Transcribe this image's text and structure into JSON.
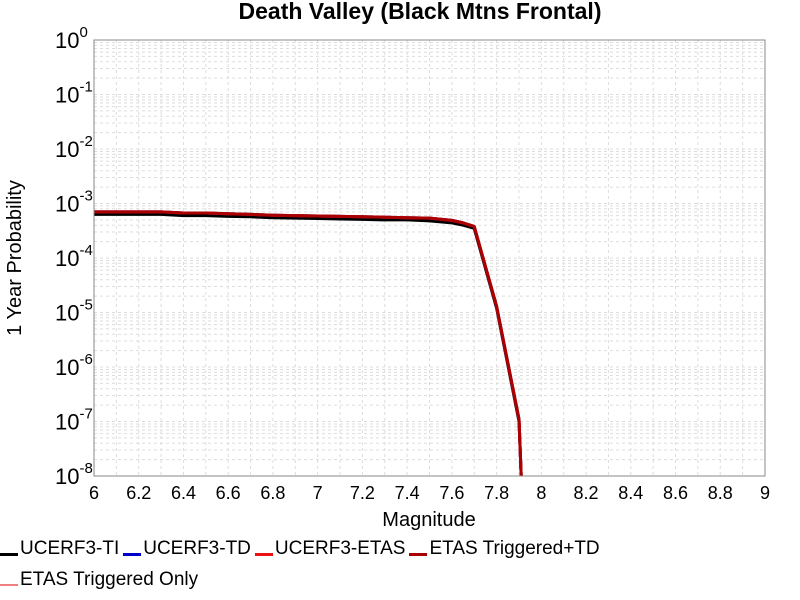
{
  "chart_data": {
    "type": "line",
    "title": "Death Valley (Black Mtns Frontal)",
    "xlabel": "Magnitude",
    "ylabel": "1 Year Probability",
    "xlim": [
      6,
      9
    ],
    "ylim": [
      1e-08,
      1
    ],
    "yscale": "log",
    "grid": true,
    "legend_position": "bottom",
    "x_ticks": [
      "6",
      "6.2",
      "6.4",
      "6.6",
      "6.8",
      "7",
      "7.2",
      "7.4",
      "7.6",
      "7.8",
      "8",
      "8.2",
      "8.4",
      "8.6",
      "8.8",
      "9"
    ],
    "y_tick_exponents": [
      "0",
      "-1",
      "-2",
      "-3",
      "-4",
      "-5",
      "-6",
      "-7",
      "-8"
    ],
    "y_tick_base": "10",
    "series": [
      {
        "name": "UCERF3-TI",
        "color": "#000000",
        "width": 3,
        "x": [
          6.0,
          6.3,
          6.4,
          6.5,
          6.6,
          6.7,
          6.8,
          6.9,
          7.0,
          7.1,
          7.2,
          7.3,
          7.4,
          7.5,
          7.6,
          7.65,
          7.7,
          7.8,
          7.9,
          7.91
        ],
        "y": [
          0.00063,
          0.00063,
          0.0006,
          0.0006,
          0.00058,
          0.00057,
          0.00055,
          0.00054,
          0.00053,
          0.00052,
          0.00051,
          0.0005,
          0.0005,
          0.00048,
          0.00044,
          0.0004,
          0.00035,
          1.2e-05,
          1e-07,
          1e-08
        ]
      },
      {
        "name": "UCERF3-TD",
        "color": "#0000cc",
        "width": 3,
        "x": [
          6.0,
          6.3,
          6.4,
          6.5,
          6.6,
          6.7,
          6.8,
          6.9,
          7.0,
          7.1,
          7.2,
          7.3,
          7.4,
          7.5,
          7.6,
          7.65,
          7.7,
          7.8,
          7.9,
          7.91
        ],
        "y": [
          0.0007,
          0.0007,
          0.00067,
          0.00067,
          0.00065,
          0.00063,
          0.00061,
          0.0006,
          0.00059,
          0.00058,
          0.00057,
          0.00056,
          0.00055,
          0.00054,
          0.00049,
          0.00044,
          0.00038,
          1.3e-05,
          1.1e-07,
          1e-08
        ]
      },
      {
        "name": "UCERF3-ETAS",
        "color": "#ee1111",
        "width": 3,
        "x": [
          6.0,
          6.3,
          6.4,
          6.5,
          6.6,
          6.7,
          6.8,
          6.9,
          7.0,
          7.1,
          7.2,
          7.3,
          7.4,
          7.5,
          7.6,
          7.65,
          7.7,
          7.8,
          7.9,
          7.91
        ],
        "y": [
          0.0007,
          0.0007,
          0.00067,
          0.00067,
          0.00065,
          0.00063,
          0.00061,
          0.0006,
          0.00059,
          0.00058,
          0.00057,
          0.00056,
          0.00055,
          0.00054,
          0.00049,
          0.00044,
          0.00038,
          1.3e-05,
          1.1e-07,
          1e-08
        ]
      },
      {
        "name": "ETAS Triggered+TD",
        "color": "#aa0000",
        "width": 3,
        "x": [
          6.0,
          6.3,
          6.4,
          6.5,
          6.6,
          6.7,
          6.8,
          6.9,
          7.0,
          7.1,
          7.2,
          7.3,
          7.4,
          7.5,
          7.6,
          7.65,
          7.7,
          7.8,
          7.9,
          7.91
        ],
        "y": [
          0.0007,
          0.0007,
          0.00067,
          0.00067,
          0.00065,
          0.00063,
          0.00061,
          0.0006,
          0.00059,
          0.00058,
          0.00057,
          0.00056,
          0.00055,
          0.00054,
          0.00049,
          0.00044,
          0.00038,
          1.3e-05,
          1.1e-07,
          1e-08
        ]
      },
      {
        "name": "ETAS Triggered Only",
        "color": "#f08080",
        "width": 1.5,
        "x": [],
        "y": []
      }
    ]
  }
}
